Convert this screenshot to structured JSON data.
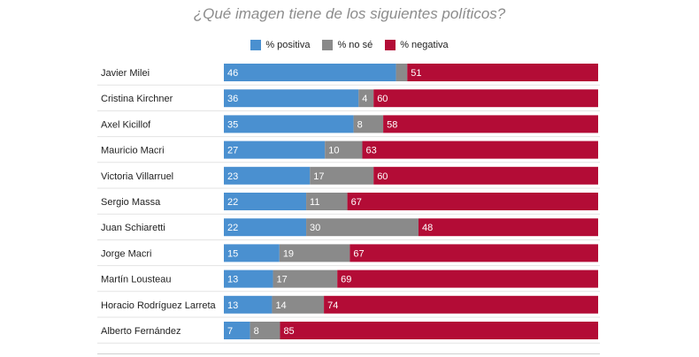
{
  "title": "¿Qué imagen tiene de los siguientes políticos?",
  "legend": [
    {
      "label": "% positiva",
      "color": "#4a90d0"
    },
    {
      "label": "% no sé",
      "color": "#8a8a8a"
    },
    {
      "label": "% negativa",
      "color": "#b30c36"
    }
  ],
  "chart_data": {
    "type": "bar",
    "orientation": "horizontal",
    "stacked": true,
    "categories": [
      "Javier Milei",
      "Cristina Kirchner",
      "Axel Kicillof",
      "Mauricio Macri",
      "Victoria Villarruel",
      "Sergio Massa",
      "Juan Schiaretti",
      "Jorge Macri",
      "Martín Lousteau",
      "Horacio Rodríguez Larreta",
      "Alberto Fernández"
    ],
    "series": [
      {
        "name": "% positiva",
        "color": "#4a90d0",
        "values": [
          46,
          36,
          35,
          27,
          23,
          22,
          22,
          15,
          13,
          13,
          7
        ]
      },
      {
        "name": "% no sé",
        "color": "#8a8a8a",
        "values": [
          3,
          4,
          8,
          10,
          17,
          11,
          30,
          19,
          17,
          14,
          8
        ]
      },
      {
        "name": "% negativa",
        "color": "#b30c36",
        "values": [
          51,
          60,
          58,
          63,
          60,
          67,
          48,
          67,
          69,
          74,
          85
        ]
      }
    ],
    "data_labels": [
      [
        "46",
        "",
        "51"
      ],
      [
        "36",
        "4",
        "60"
      ],
      [
        "35",
        "8",
        "58"
      ],
      [
        "27",
        "10",
        "63"
      ],
      [
        "23",
        "17",
        "60"
      ],
      [
        "22",
        "11",
        "67"
      ],
      [
        "22",
        "30",
        "48"
      ],
      [
        "15",
        "19",
        "67"
      ],
      [
        "13",
        "17",
        "69"
      ],
      [
        "13",
        "14",
        "74"
      ],
      [
        "7",
        "8",
        "85"
      ]
    ],
    "xlim": [
      0,
      100
    ],
    "grid": false,
    "legend_position": "top-center"
  }
}
